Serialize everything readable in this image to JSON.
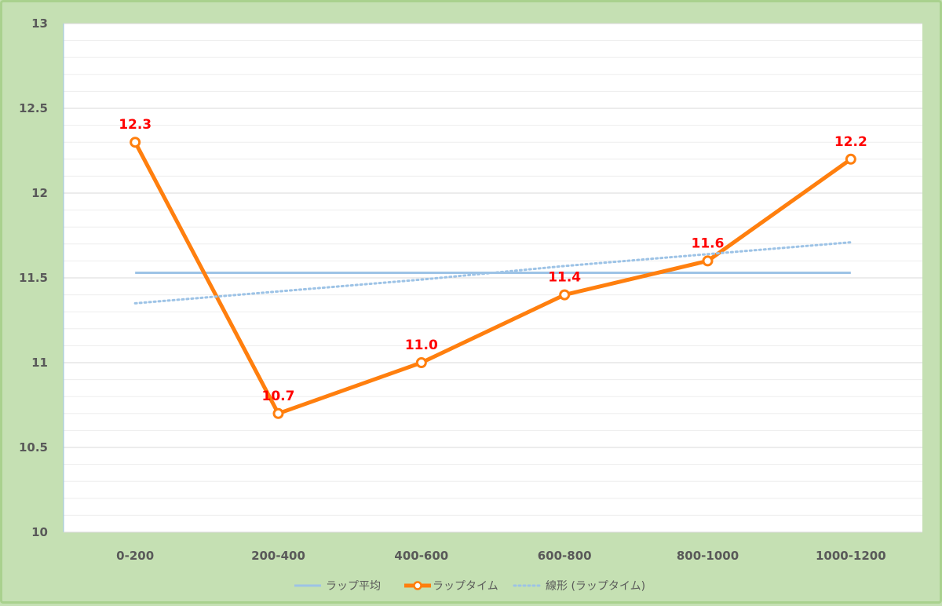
{
  "chart_data": {
    "type": "line",
    "categories": [
      "0-200",
      "200-400",
      "400-600",
      "600-800",
      "800-1000",
      "1000-1200"
    ],
    "series": [
      {
        "name": "ラップ平均",
        "values": [
          11.53,
          11.53,
          11.53,
          11.53,
          11.53,
          11.53
        ],
        "color": "#9dc3e6",
        "style": "solid"
      },
      {
        "name": "ラップタイム",
        "values": [
          12.3,
          10.7,
          11.0,
          11.4,
          11.6,
          12.2
        ],
        "data_labels": [
          "12.3",
          "10.7",
          "11.0",
          "11.4",
          "11.6",
          "12.2"
        ],
        "color": "#ff7f0e",
        "style": "solid-markers"
      },
      {
        "name": "線形 (ラップタイム)",
        "values": [
          11.35,
          11.42,
          11.49,
          11.57,
          11.64,
          11.71
        ],
        "color": "#9dc3e6",
        "style": "dotted"
      }
    ],
    "y_ticks": [
      "10",
      "10.5",
      "11",
      "11.5",
      "12",
      "12.5",
      "13"
    ],
    "ylim": [
      10,
      13
    ],
    "grid": true,
    "legend_position": "bottom",
    "colors": {
      "background": "#c5e0b3",
      "plot_area": "#ffffff",
      "label": "#ff0000"
    }
  }
}
